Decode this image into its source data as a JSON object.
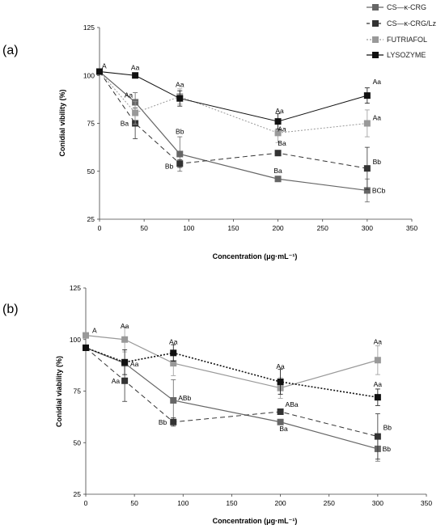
{
  "legend": [
    {
      "label": "CS—κ-CRG",
      "color": "#666666",
      "dash": "",
      "marker": "square"
    },
    {
      "label": "CS—κ-CRG/Lz",
      "color": "#333333",
      "dash": "4,3",
      "marker": "square"
    },
    {
      "label": "FUTRIAFOL",
      "color": "#999999",
      "dash": "2,2",
      "marker": "square"
    },
    {
      "label": "LYSOZYME",
      "color": "#111111",
      "dash": "",
      "marker": "square"
    }
  ],
  "chart_data": [
    {
      "panel_label": "(a)",
      "type": "line",
      "xlabel": "Concentration (μg·mL⁻¹)",
      "ylabel": "Conidial vibility (%)",
      "xlim": [
        0,
        350
      ],
      "ylim": [
        25,
        125
      ],
      "xticks": [
        0,
        50,
        100,
        150,
        200,
        250,
        300,
        350
      ],
      "yticks": [
        25,
        50,
        75,
        100,
        125
      ],
      "series": [
        {
          "name": "CS—κ-CRG",
          "color": "#666666",
          "dash": "",
          "width": 1.2,
          "x": [
            0,
            40,
            90,
            200,
            300
          ],
          "y": [
            102,
            86,
            59,
            46,
            40
          ],
          "err": [
            0,
            5,
            9,
            0,
            6
          ]
        },
        {
          "name": "CS—κ-CRG/Lz",
          "color": "#333333",
          "dash": "6,4",
          "width": 1,
          "x": [
            0,
            40,
            90,
            200,
            300
          ],
          "y": [
            102,
            75,
            54,
            59.5,
            51.5
          ],
          "err": [
            0,
            8,
            2,
            0,
            11
          ]
        },
        {
          "name": "FUTRIAFOL",
          "color": "#999999",
          "dash": "2,2",
          "width": 1,
          "x": [
            0,
            40,
            90,
            200,
            300
          ],
          "y": [
            102,
            80.5,
            89,
            70,
            75
          ],
          "err": [
            0,
            6,
            4,
            5,
            7
          ]
        },
        {
          "name": "LYSOZYME",
          "color": "#111111",
          "dash": "",
          "width": 1,
          "x": [
            0,
            40,
            90,
            200,
            300
          ],
          "y": [
            102,
            100,
            88,
            76,
            89.5
          ],
          "err": [
            0,
            0,
            4,
            4,
            4
          ]
        }
      ],
      "annotations": [
        {
          "text": "A",
          "x": 0,
          "y": 102,
          "dx": 3,
          "dy": -4,
          "anchor": "start"
        },
        {
          "text": "Aa",
          "x": 40,
          "y": 100,
          "dx": 0,
          "dy": -7,
          "anchor": "middle"
        },
        {
          "text": "Aa",
          "x": 40,
          "y": 86,
          "dx": -3,
          "dy": -6,
          "anchor": "end"
        },
        {
          "text": "Ba",
          "x": 40,
          "y": 75,
          "dx": -8,
          "dy": 3,
          "anchor": "end"
        },
        {
          "text": "Aa",
          "x": 90,
          "y": 88,
          "dx": 0,
          "dy": -14,
          "anchor": "middle"
        },
        {
          "text": "Bb",
          "x": 90,
          "y": 59,
          "dx": 0,
          "dy": -25,
          "anchor": "middle"
        },
        {
          "text": "Bb",
          "x": 90,
          "y": 54,
          "dx": -8,
          "dy": 6,
          "anchor": "end"
        },
        {
          "text": "Aa",
          "x": 200,
          "y": 76,
          "dx": 2,
          "dy": -10,
          "anchor": "middle"
        },
        {
          "text": "Aa",
          "x": 200,
          "y": 70,
          "dx": 5,
          "dy": -2,
          "anchor": "middle"
        },
        {
          "text": "Ba",
          "x": 200,
          "y": 59.5,
          "dx": 5,
          "dy": -9,
          "anchor": "middle"
        },
        {
          "text": "Ba",
          "x": 200,
          "y": 46,
          "dx": 0,
          "dy": -7,
          "anchor": "middle"
        },
        {
          "text": "Aa",
          "x": 300,
          "y": 89.5,
          "dx": 12,
          "dy": -14,
          "anchor": "middle"
        },
        {
          "text": "Aa",
          "x": 300,
          "y": 75,
          "dx": 12,
          "dy": -4,
          "anchor": "middle"
        },
        {
          "text": "Bb",
          "x": 300,
          "y": 51.5,
          "dx": 12,
          "dy": -5,
          "anchor": "middle"
        },
        {
          "text": "BCb",
          "x": 300,
          "y": 40,
          "dx": 6,
          "dy": 3,
          "anchor": "start"
        }
      ]
    },
    {
      "panel_label": "(b)",
      "type": "line",
      "xlabel": "Concentration (μg·mL⁻¹)",
      "ylabel": "Conidial viability (%)",
      "xlim": [
        0,
        350
      ],
      "ylim": [
        25,
        125
      ],
      "xticks": [
        0,
        50,
        100,
        150,
        200,
        250,
        300,
        350
      ],
      "yticks": [
        25,
        50,
        75,
        100,
        125
      ],
      "series": [
        {
          "name": "CS—κ-CRG",
          "color": "#666666",
          "dash": "",
          "width": 1.2,
          "x": [
            0,
            40,
            90,
            200,
            300
          ],
          "y": [
            96,
            88.5,
            70.5,
            60,
            47
          ],
          "err": [
            0,
            0,
            10,
            0,
            6
          ]
        },
        {
          "name": "CS—κ-CRG/Lz",
          "color": "#333333",
          "dash": "6,4",
          "width": 1,
          "x": [
            0,
            40,
            90,
            200,
            300
          ],
          "y": [
            96,
            80,
            60,
            65,
            53
          ],
          "err": [
            0,
            10,
            2,
            0,
            11
          ]
        },
        {
          "name": "FUTRIAFOL",
          "color": "#999999",
          "dash": "",
          "width": 1.2,
          "x": [
            0,
            40,
            90,
            200,
            300
          ],
          "y": [
            102,
            100,
            88.5,
            76.5,
            90
          ],
          "err": [
            0,
            6,
            6,
            5,
            7
          ]
        },
        {
          "name": "LYSOZYME",
          "color": "#111111",
          "dash": "2,2",
          "width": 1.6,
          "x": [
            0,
            40,
            90,
            200,
            300
          ],
          "y": [
            96,
            89,
            93.5,
            79.5,
            72
          ],
          "err": [
            0,
            6,
            4,
            6,
            4
          ]
        }
      ],
      "annotations": [
        {
          "text": "A",
          "x": 0,
          "y": 102,
          "dx": 8,
          "dy": -3,
          "anchor": "start"
        },
        {
          "text": "Aa",
          "x": 40,
          "y": 100,
          "dx": 0,
          "dy": -14,
          "anchor": "middle"
        },
        {
          "text": "Aa",
          "x": 40,
          "y": 88.5,
          "dx": 12,
          "dy": 4,
          "anchor": "middle"
        },
        {
          "text": "Aa",
          "x": 40,
          "y": 80,
          "dx": -6,
          "dy": 3,
          "anchor": "end"
        },
        {
          "text": "Aa",
          "x": 90,
          "y": 93.5,
          "dx": 0,
          "dy": -11,
          "anchor": "middle"
        },
        {
          "text": "ABb",
          "x": 90,
          "y": 70.5,
          "dx": 14,
          "dy": 0,
          "anchor": "middle"
        },
        {
          "text": "Bb",
          "x": 90,
          "y": 60,
          "dx": -8,
          "dy": 3,
          "anchor": "end"
        },
        {
          "text": "Aa",
          "x": 200,
          "y": 79.5,
          "dx": 0,
          "dy": -16,
          "anchor": "middle"
        },
        {
          "text": "ABa",
          "x": 200,
          "y": 65,
          "dx": 14,
          "dy": -6,
          "anchor": "middle"
        },
        {
          "text": "Ba",
          "x": 200,
          "y": 60,
          "dx": 4,
          "dy": 11,
          "anchor": "middle"
        },
        {
          "text": "Aa",
          "x": 300,
          "y": 90,
          "dx": 0,
          "dy": -20,
          "anchor": "middle"
        },
        {
          "text": "Aa",
          "x": 300,
          "y": 72,
          "dx": 0,
          "dy": -13,
          "anchor": "middle"
        },
        {
          "text": "Bb",
          "x": 300,
          "y": 53,
          "dx": 12,
          "dy": -8,
          "anchor": "middle"
        },
        {
          "text": "Bb",
          "x": 300,
          "y": 47,
          "dx": 11,
          "dy": 3,
          "anchor": "middle"
        }
      ]
    }
  ]
}
